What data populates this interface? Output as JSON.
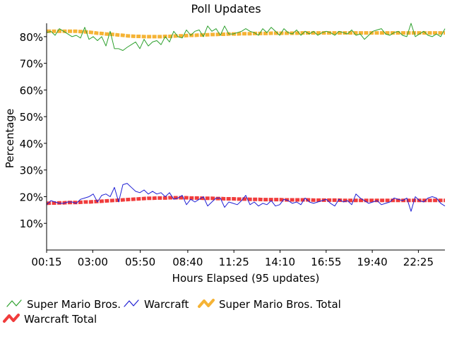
{
  "chart_data": {
    "type": "line",
    "title": "Poll Updates",
    "xlabel": "Hours Elapsed (95 updates)",
    "ylabel": "Percentage",
    "y_ticks": [
      "10%",
      "20%",
      "30%",
      "40%",
      "50%",
      "60%",
      "70%",
      "80%"
    ],
    "y_tick_values": [
      10,
      20,
      30,
      40,
      50,
      60,
      70,
      80
    ],
    "ylim": [
      0,
      85
    ],
    "x_ticks": [
      "00:15",
      "03:00",
      "05:50",
      "08:40",
      "11:25",
      "14:10",
      "16:55",
      "19:40",
      "22:25"
    ],
    "x_tick_hours": [
      0.25,
      3.0,
      5.833,
      8.667,
      11.417,
      14.167,
      16.917,
      19.667,
      22.417
    ],
    "xlim_hours": [
      0.25,
      24.0
    ],
    "grid": false,
    "legend_position": "bottom",
    "series": [
      {
        "name": "Super Mario Bros.",
        "color": "#2ca02c",
        "style": "thin",
        "values": [
          81.5,
          82,
          80.5,
          83,
          82,
          81,
          80,
          80.5,
          79.5,
          83.5,
          79,
          80,
          78.5,
          80,
          76.5,
          82,
          75.5,
          75.5,
          74.8,
          76,
          77,
          78,
          75.5,
          79,
          76.5,
          78,
          78.5,
          77,
          80,
          78,
          82,
          80,
          79.5,
          82.5,
          80.5,
          82,
          82.5,
          80,
          84,
          82,
          83,
          80.5,
          84,
          81,
          81,
          81.5,
          82,
          83,
          82,
          81.5,
          80.5,
          83,
          81.5,
          83.5,
          82,
          80.5,
          83,
          81.5,
          81,
          82.5,
          80.5,
          82,
          81,
          82,
          80.5,
          81.5,
          82,
          81.5,
          80.5,
          82,
          81.5,
          81,
          82.5,
          80.5,
          81,
          79,
          80.5,
          82,
          82.5,
          83,
          81,
          80.5,
          81.5,
          82,
          80.5,
          80,
          85,
          80,
          81,
          82,
          80.5,
          80,
          81,
          80,
          83
        ]
      },
      {
        "name": "Warcraft",
        "color": "#1f1fd4",
        "style": "thin",
        "values": [
          17,
          18.5,
          18,
          17.5,
          17.5,
          18,
          18,
          17.5,
          19,
          19.5,
          20,
          21,
          18,
          20.5,
          21,
          20,
          23.5,
          18,
          24.5,
          25,
          23.5,
          22,
          21.5,
          22.5,
          21,
          22,
          21,
          21.5,
          20,
          21.5,
          19,
          19.5,
          20.5,
          17,
          19,
          18,
          19,
          20,
          16.5,
          18,
          19.5,
          19.5,
          16,
          18,
          17.5,
          17,
          18.5,
          20.5,
          17,
          18,
          16.5,
          17.5,
          17,
          18.5,
          16.5,
          17,
          19,
          18.5,
          17.5,
          18,
          17,
          19.5,
          18,
          17.5,
          18,
          18.5,
          19,
          17.5,
          16.5,
          19,
          18,
          18.5,
          17,
          21,
          19.5,
          18.5,
          17.5,
          18,
          18.5,
          17,
          17.5,
          18,
          19.5,
          19,
          18.5,
          19.5,
          14.5,
          20,
          18.5,
          18,
          19.5,
          20,
          19.5,
          17.5,
          16.5
        ]
      },
      {
        "name": "Super Mario Bros. Total",
        "color": "#f5b335",
        "style": "thick",
        "values": [
          82,
          82,
          82,
          82,
          82,
          82,
          82,
          82,
          81.9,
          81.8,
          81.7,
          81.5,
          81.3,
          81.2,
          81.0,
          80.9,
          80.8,
          80.6,
          80.5,
          80.3,
          80.2,
          80.1,
          80.1,
          80.0,
          80.0,
          80.0,
          80.0,
          80.0,
          80.1,
          80.1,
          80.2,
          80.3,
          80.3,
          80.4,
          80.5,
          80.5,
          80.6,
          80.6,
          80.7,
          80.8,
          80.8,
          80.9,
          80.9,
          81.0,
          81.0,
          81.0,
          81.1,
          81.1,
          81.1,
          81.2,
          81.2,
          81.2,
          81.2,
          81.3,
          81.3,
          81.3,
          81.3,
          81.3,
          81.3,
          81.3,
          81.4,
          81.4,
          81.4,
          81.4,
          81.4,
          81.4,
          81.4,
          81.4,
          81.4,
          81.4,
          81.4,
          81.4,
          81.4,
          81.4,
          81.4,
          81.4,
          81.4,
          81.4,
          81.4,
          81.4,
          81.4,
          81.4,
          81.4,
          81.4,
          81.4,
          81.4,
          81.4,
          81.4,
          81.4,
          81.4,
          81.4,
          81.4,
          81.4,
          81.4,
          81.4
        ]
      },
      {
        "name": "Warcraft Total",
        "color": "#f03c3c",
        "style": "thick",
        "values": [
          17.5,
          17.6,
          17.6,
          17.7,
          17.7,
          17.8,
          17.8,
          17.8,
          17.9,
          18.0,
          18.0,
          18.1,
          18.2,
          18.3,
          18.4,
          18.5,
          18.6,
          18.7,
          18.8,
          18.9,
          19.0,
          19.1,
          19.2,
          19.3,
          19.4,
          19.4,
          19.5,
          19.5,
          19.5,
          19.6,
          19.6,
          19.6,
          19.6,
          19.6,
          19.5,
          19.5,
          19.5,
          19.4,
          19.4,
          19.4,
          19.3,
          19.3,
          19.2,
          19.2,
          19.2,
          19.1,
          19.1,
          19.1,
          19.0,
          19.0,
          19.0,
          18.9,
          18.9,
          18.9,
          18.9,
          18.9,
          18.8,
          18.8,
          18.8,
          18.8,
          18.8,
          18.8,
          18.8,
          18.7,
          18.7,
          18.7,
          18.7,
          18.7,
          18.7,
          18.7,
          18.6,
          18.6,
          18.6,
          18.6,
          18.6,
          18.6,
          18.6,
          18.6,
          18.6,
          18.6,
          18.6,
          18.6,
          18.6,
          18.6,
          18.6,
          18.6,
          18.6,
          18.6,
          18.6,
          18.6,
          18.6,
          18.6,
          18.6,
          18.6,
          18.6
        ]
      }
    ]
  }
}
